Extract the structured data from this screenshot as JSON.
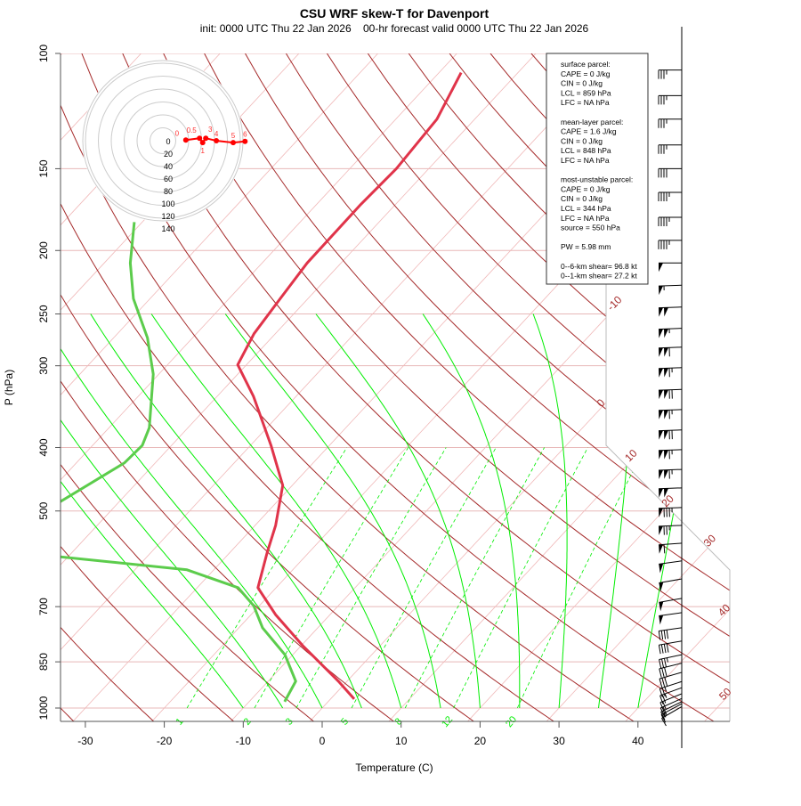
{
  "chart_data": {
    "type": "line",
    "title": "CSU WRF skew-T for Davenport",
    "subtitle": "init: 0000 UTC Thu 22 Jan 2026    00-hr forecast valid 0000 UTC Thu 22 Jan 2026",
    "xlabel": "Temperature (C)",
    "ylabel": "P (hPa)",
    "xlim": [
      -33,
      45
    ],
    "ylim": [
      1050,
      100
    ],
    "y_scale": "log",
    "x_ticks": [
      -30,
      -20,
      -10,
      0,
      10,
      20,
      30,
      40
    ],
    "y_ticks": [
      100,
      150,
      200,
      250,
      300,
      400,
      500,
      700,
      850,
      1000
    ],
    "isotherm_labels": [
      -10,
      0,
      10,
      20,
      30,
      40,
      50
    ],
    "mixing_ratio_labels": [
      1,
      2,
      3,
      5,
      8,
      12,
      20
    ],
    "colors": {
      "temperature": "#e0344a",
      "dewpoint": "#5ccc4c",
      "dry_adiabat": "#a52a2a",
      "moist_adiabat": "#00ee00",
      "isotherm": "#f0b8b8",
      "isobar": "#e8b8b8"
    },
    "series": [
      {
        "name": "temperature",
        "points": [
          [
            969,
            3.0
          ],
          [
            910,
            -1.1
          ],
          [
            803,
            -9.8
          ],
          [
            720,
            -16.9
          ],
          [
            655,
            -22.3
          ],
          [
            578,
            -25.3
          ],
          [
            526,
            -27.4
          ],
          [
            457,
            -31.2
          ],
          [
            397,
            -37.4
          ],
          [
            334,
            -45.4
          ],
          [
            299,
            -51.1
          ],
          [
            268,
            -52.7
          ],
          [
            237,
            -53.5
          ],
          [
            209,
            -54.3
          ],
          [
            170,
            -54.4
          ],
          [
            150,
            -54.1
          ],
          [
            126,
            -54.8
          ],
          [
            107,
            -57.2
          ]
        ]
      },
      {
        "name": "dewpoint",
        "points": [
          [
            978,
            -5.5
          ],
          [
            910,
            -6.5
          ],
          [
            829,
            -11.0
          ],
          [
            754,
            -17.0
          ],
          [
            698,
            -20.7
          ],
          [
            655,
            -24.8
          ],
          [
            615,
            -33.4
          ],
          [
            587,
            -51.3
          ],
          [
            551,
            -54.0
          ],
          [
            510,
            -58.3
          ],
          [
            486,
            -57.6
          ],
          [
            422,
            -53.9
          ],
          [
            397,
            -53.7
          ],
          [
            373,
            -54.9
          ],
          [
            309,
            -60.7
          ],
          [
            272,
            -65.7
          ],
          [
            237,
            -72.1
          ],
          [
            209,
            -76.7
          ],
          [
            181,
            -81.0
          ]
        ]
      }
    ],
    "wind_barbs": [
      [
        106,
        270,
        35
      ],
      [
        116,
        270,
        35
      ],
      [
        126,
        270,
        35
      ],
      [
        138,
        270,
        35
      ],
      [
        150,
        270,
        40
      ],
      [
        163,
        270,
        45
      ],
      [
        178,
        270,
        45
      ],
      [
        193,
        270,
        45
      ],
      [
        209,
        270,
        50
      ],
      [
        226,
        268,
        55
      ],
      [
        244,
        268,
        100
      ],
      [
        263,
        268,
        105
      ],
      [
        281,
        268,
        110
      ],
      [
        302,
        268,
        115
      ],
      [
        326,
        268,
        120
      ],
      [
        350,
        268,
        115
      ],
      [
        376,
        268,
        120
      ],
      [
        403,
        268,
        115
      ],
      [
        432,
        268,
        115
      ],
      [
        461,
        268,
        100
      ],
      [
        494,
        268,
        85
      ],
      [
        526,
        268,
        75
      ],
      [
        560,
        266,
        60
      ],
      [
        596,
        262,
        50
      ],
      [
        635,
        260,
        50
      ],
      [
        680,
        260,
        50
      ],
      [
        715,
        262,
        50
      ],
      [
        754,
        262,
        40
      ],
      [
        790,
        260,
        40
      ],
      [
        829,
        258,
        35
      ],
      [
        854,
        256,
        30
      ],
      [
        882,
        254,
        30
      ],
      [
        911,
        252,
        25
      ],
      [
        931,
        250,
        25
      ],
      [
        951,
        248,
        20
      ],
      [
        967,
        246,
        20
      ],
      [
        978,
        244,
        15
      ],
      [
        985,
        242,
        15
      ],
      [
        995,
        240,
        10
      ]
    ],
    "hodograph": {
      "ring_labels": [
        "0",
        "20",
        "40",
        "60",
        "80",
        "100",
        "120",
        "140"
      ],
      "points": [
        [
          14,
          1
        ],
        [
          36,
          4
        ],
        [
          41,
          -3
        ],
        [
          46,
          4
        ],
        [
          63,
          0
        ],
        [
          90,
          -3
        ],
        [
          109,
          -1
        ]
      ],
      "point_labels": [
        "0",
        "0.5",
        "1",
        "3",
        "4",
        "5",
        "6"
      ]
    }
  },
  "info_box": {
    "lines": [
      "surface parcel:",
      "CAPE = 0 J/kg",
      "CIN = 0 J/kg",
      "LCL = 859 hPa",
      "LFC = NA hPa",
      "",
      "mean-layer parcel:",
      "CAPE = 1.6 J/kg",
      "CIN = 0 J/kg",
      "LCL = 848 hPa",
      "LFC = NA hPa",
      "",
      "most-unstable parcel:",
      "CAPE = 0 J/kg",
      "CIN = 0 J/kg",
      "LCL = 344 hPa",
      "LFC = NA hPa",
      "source = 550 hPa",
      "",
      "PW =  5.98 mm",
      "",
      "0--6-km shear= 96.8 kt",
      "0--1-km shear= 27.2 kt"
    ]
  }
}
